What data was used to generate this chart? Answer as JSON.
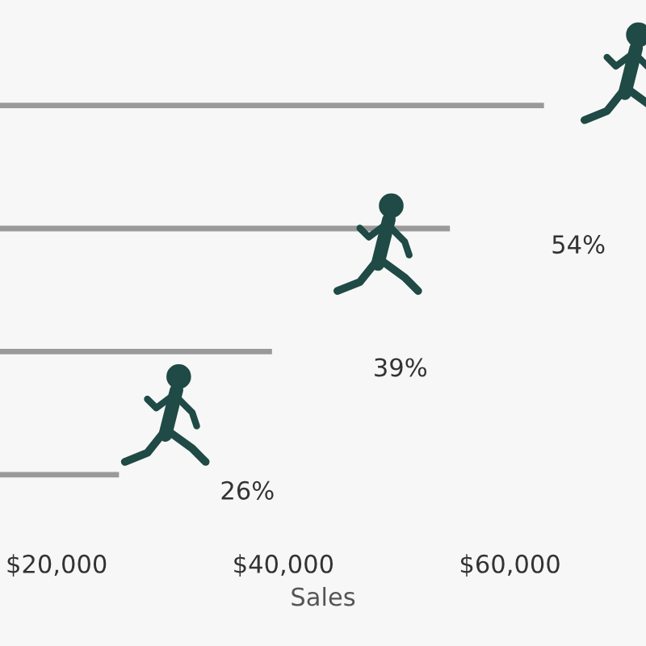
{
  "chart_data": {
    "type": "bar",
    "orientation": "horizontal",
    "xlabel": "Sales",
    "categories": [
      null,
      null,
      null,
      null
    ],
    "series": [
      {
        "color": "#9a9a9a",
        "values": [
          63000,
          54700,
          39000,
          25500
        ]
      }
    ],
    "annotations": [
      "54%",
      "39%",
      "26%"
    ],
    "xlim": [
      15000,
      72000
    ],
    "xticks": [
      {
        "value": 20000,
        "label": "$20,000"
      },
      {
        "value": 40000,
        "label": "$40,000"
      },
      {
        "value": 60000,
        "label": "$60,000"
      }
    ],
    "marker": "none",
    "grid": false,
    "legend": false
  }
}
